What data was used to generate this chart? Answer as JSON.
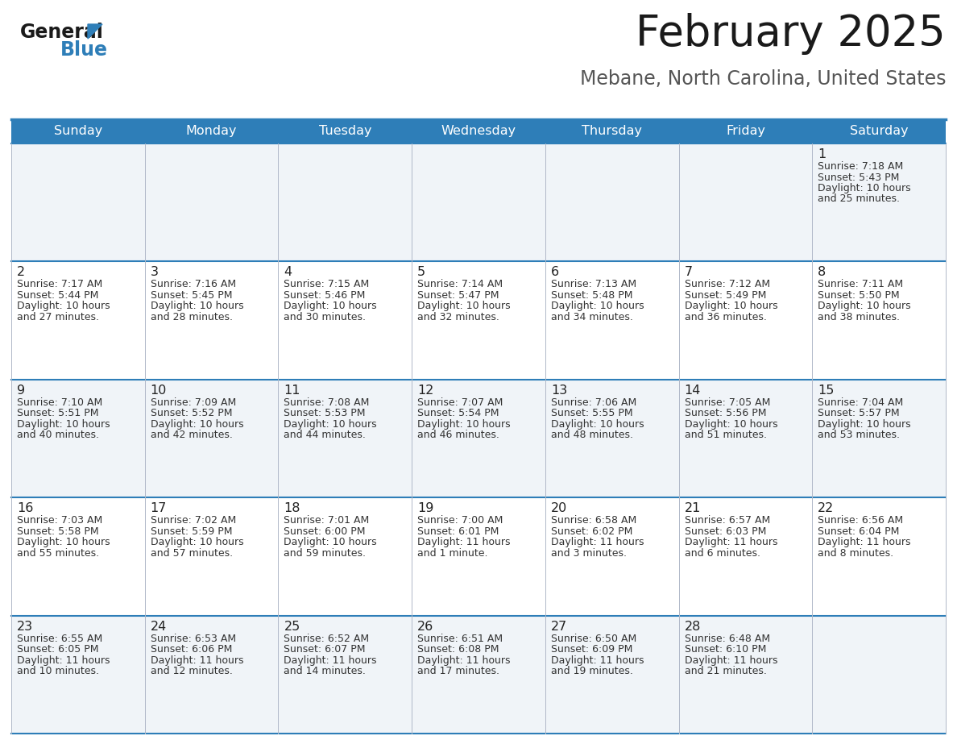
{
  "title": "February 2025",
  "subtitle": "Mebane, North Carolina, United States",
  "header_bg": "#2e7eb8",
  "header_text": "#ffffff",
  "row0_bg": "#f0f4f8",
  "row1_bg": "#ffffff",
  "cell_text": "#333333",
  "day_number_color": "#222222",
  "border_color": "#2e7eb8",
  "days_of_week": [
    "Sunday",
    "Monday",
    "Tuesday",
    "Wednesday",
    "Thursday",
    "Friday",
    "Saturday"
  ],
  "calendar": [
    [
      null,
      null,
      null,
      null,
      null,
      null,
      {
        "day": "1",
        "sunrise": "7:18 AM",
        "sunset": "5:43 PM",
        "daylight": "10 hours\nand 25 minutes."
      }
    ],
    [
      {
        "day": "2",
        "sunrise": "7:17 AM",
        "sunset": "5:44 PM",
        "daylight": "10 hours\nand 27 minutes."
      },
      {
        "day": "3",
        "sunrise": "7:16 AM",
        "sunset": "5:45 PM",
        "daylight": "10 hours\nand 28 minutes."
      },
      {
        "day": "4",
        "sunrise": "7:15 AM",
        "sunset": "5:46 PM",
        "daylight": "10 hours\nand 30 minutes."
      },
      {
        "day": "5",
        "sunrise": "7:14 AM",
        "sunset": "5:47 PM",
        "daylight": "10 hours\nand 32 minutes."
      },
      {
        "day": "6",
        "sunrise": "7:13 AM",
        "sunset": "5:48 PM",
        "daylight": "10 hours\nand 34 minutes."
      },
      {
        "day": "7",
        "sunrise": "7:12 AM",
        "sunset": "5:49 PM",
        "daylight": "10 hours\nand 36 minutes."
      },
      {
        "day": "8",
        "sunrise": "7:11 AM",
        "sunset": "5:50 PM",
        "daylight": "10 hours\nand 38 minutes."
      }
    ],
    [
      {
        "day": "9",
        "sunrise": "7:10 AM",
        "sunset": "5:51 PM",
        "daylight": "10 hours\nand 40 minutes."
      },
      {
        "day": "10",
        "sunrise": "7:09 AM",
        "sunset": "5:52 PM",
        "daylight": "10 hours\nand 42 minutes."
      },
      {
        "day": "11",
        "sunrise": "7:08 AM",
        "sunset": "5:53 PM",
        "daylight": "10 hours\nand 44 minutes."
      },
      {
        "day": "12",
        "sunrise": "7:07 AM",
        "sunset": "5:54 PM",
        "daylight": "10 hours\nand 46 minutes."
      },
      {
        "day": "13",
        "sunrise": "7:06 AM",
        "sunset": "5:55 PM",
        "daylight": "10 hours\nand 48 minutes."
      },
      {
        "day": "14",
        "sunrise": "7:05 AM",
        "sunset": "5:56 PM",
        "daylight": "10 hours\nand 51 minutes."
      },
      {
        "day": "15",
        "sunrise": "7:04 AM",
        "sunset": "5:57 PM",
        "daylight": "10 hours\nand 53 minutes."
      }
    ],
    [
      {
        "day": "16",
        "sunrise": "7:03 AM",
        "sunset": "5:58 PM",
        "daylight": "10 hours\nand 55 minutes."
      },
      {
        "day": "17",
        "sunrise": "7:02 AM",
        "sunset": "5:59 PM",
        "daylight": "10 hours\nand 57 minutes."
      },
      {
        "day": "18",
        "sunrise": "7:01 AM",
        "sunset": "6:00 PM",
        "daylight": "10 hours\nand 59 minutes."
      },
      {
        "day": "19",
        "sunrise": "7:00 AM",
        "sunset": "6:01 PM",
        "daylight": "11 hours\nand 1 minute."
      },
      {
        "day": "20",
        "sunrise": "6:58 AM",
        "sunset": "6:02 PM",
        "daylight": "11 hours\nand 3 minutes."
      },
      {
        "day": "21",
        "sunrise": "6:57 AM",
        "sunset": "6:03 PM",
        "daylight": "11 hours\nand 6 minutes."
      },
      {
        "day": "22",
        "sunrise": "6:56 AM",
        "sunset": "6:04 PM",
        "daylight": "11 hours\nand 8 minutes."
      }
    ],
    [
      {
        "day": "23",
        "sunrise": "6:55 AM",
        "sunset": "6:05 PM",
        "daylight": "11 hours\nand 10 minutes."
      },
      {
        "day": "24",
        "sunrise": "6:53 AM",
        "sunset": "6:06 PM",
        "daylight": "11 hours\nand 12 minutes."
      },
      {
        "day": "25",
        "sunrise": "6:52 AM",
        "sunset": "6:07 PM",
        "daylight": "11 hours\nand 14 minutes."
      },
      {
        "day": "26",
        "sunrise": "6:51 AM",
        "sunset": "6:08 PM",
        "daylight": "11 hours\nand 17 minutes."
      },
      {
        "day": "27",
        "sunrise": "6:50 AM",
        "sunset": "6:09 PM",
        "daylight": "11 hours\nand 19 minutes."
      },
      {
        "day": "28",
        "sunrise": "6:48 AM",
        "sunset": "6:10 PM",
        "daylight": "11 hours\nand 21 minutes."
      },
      null
    ]
  ]
}
